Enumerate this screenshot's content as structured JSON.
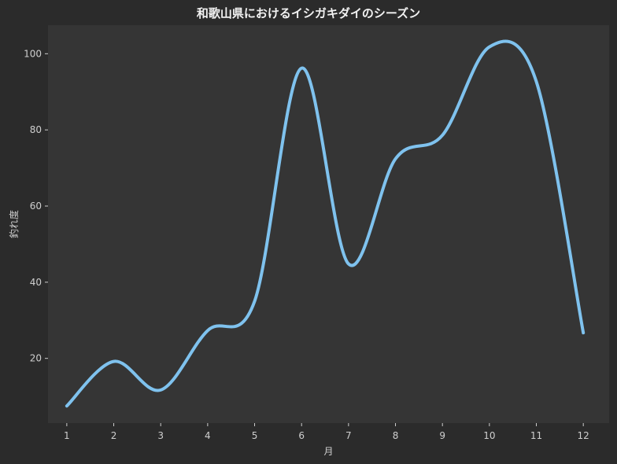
{
  "chart_data": {
    "type": "line",
    "title": "和歌山県におけるイシガキダイのシーズン",
    "xlabel": "月",
    "ylabel": "釣れ度",
    "x": [
      1,
      2,
      3,
      4,
      5,
      6,
      7,
      8,
      9,
      10,
      11,
      12
    ],
    "series": [
      {
        "values": [
          7.5,
          19.2,
          11.7,
          27.3,
          35.0,
          96.2,
          44.8,
          72.4,
          78.6,
          101.8,
          92.7,
          26.7
        ]
      }
    ],
    "xlim": [
      0.6,
      12.55
    ],
    "ylim": [
      3,
      107.5
    ],
    "xticks": [
      1,
      2,
      3,
      4,
      5,
      6,
      7,
      8,
      9,
      10,
      11,
      12
    ],
    "yticks": [
      20,
      40,
      60,
      80,
      100
    ],
    "grid": false,
    "colors": {
      "page_background": "#2b2b2b",
      "plot_background": "#353535",
      "line": "#7fc2ee",
      "tick_text": "#cfcfcf",
      "axis_text": "#cfcfcf",
      "title_text": "#f2f2f2"
    }
  }
}
